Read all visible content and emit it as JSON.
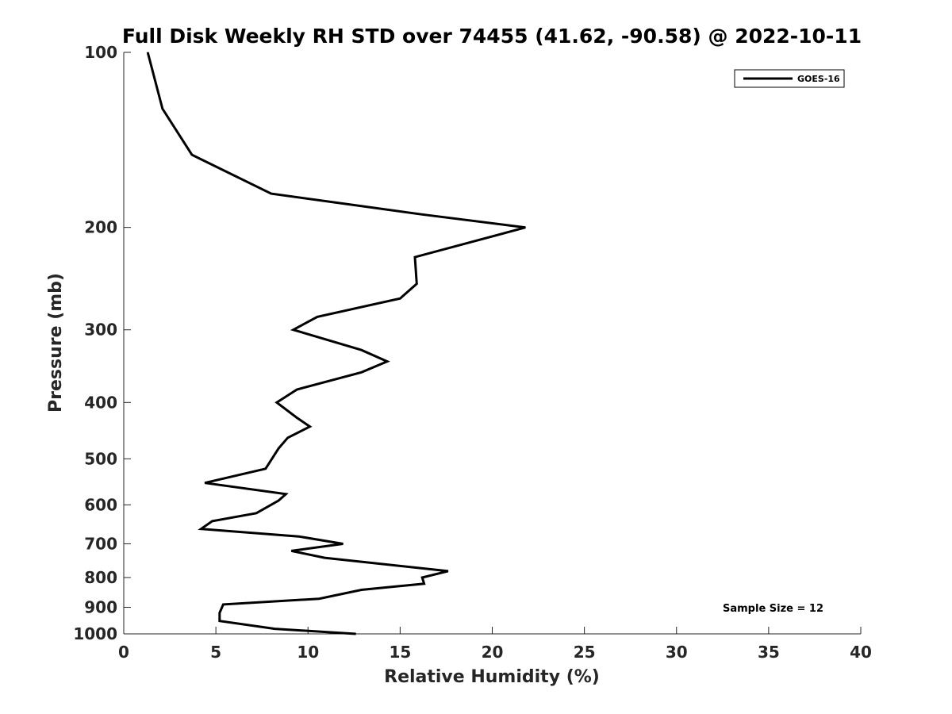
{
  "chart_data": {
    "type": "line",
    "title": "Full Disk Weekly RH STD over 74455 (41.62, -90.58) @ 2022-10-11",
    "xlabel": "Relative Humidity (%)",
    "ylabel": "Pressure (mb)",
    "xlim": [
      0,
      40
    ],
    "ylim": [
      100,
      1000
    ],
    "y_scale": "log",
    "y_reversed": true,
    "x_ticks": [
      0,
      5,
      10,
      15,
      20,
      25,
      30,
      35,
      40
    ],
    "y_ticks": [
      100,
      200,
      300,
      400,
      500,
      600,
      700,
      800,
      900,
      1000
    ],
    "legend": {
      "position": "top-right",
      "entries": [
        "GOES-16"
      ]
    },
    "annotation": "Sample Size = 12",
    "series": [
      {
        "name": "GOES-16",
        "color": "#000000",
        "points": [
          [
            1.3,
            100
          ],
          [
            2.1,
            125
          ],
          [
            3.7,
            150
          ],
          [
            8.0,
            175
          ],
          [
            16.2,
            190
          ],
          [
            21.8,
            200
          ],
          [
            15.8,
            225
          ],
          [
            15.9,
            250
          ],
          [
            15.0,
            265
          ],
          [
            10.5,
            285
          ],
          [
            9.2,
            300
          ],
          [
            12.9,
            325
          ],
          [
            14.3,
            340
          ],
          [
            12.9,
            355
          ],
          [
            9.4,
            380
          ],
          [
            8.3,
            400
          ],
          [
            9.4,
            425
          ],
          [
            10.1,
            440
          ],
          [
            8.9,
            460
          ],
          [
            8.4,
            480
          ],
          [
            7.7,
            520
          ],
          [
            4.4,
            550
          ],
          [
            8.8,
            575
          ],
          [
            8.4,
            590
          ],
          [
            7.2,
            620
          ],
          [
            4.8,
            640
          ],
          [
            4.2,
            660
          ],
          [
            9.5,
            680
          ],
          [
            11.9,
            700
          ],
          [
            9.1,
            720
          ],
          [
            10.9,
            740
          ],
          [
            17.6,
            780
          ],
          [
            16.2,
            800
          ],
          [
            16.3,
            820
          ],
          [
            12.9,
            840
          ],
          [
            10.6,
            870
          ],
          [
            5.4,
            890
          ],
          [
            5.2,
            920
          ],
          [
            5.2,
            950
          ],
          [
            8.2,
            980
          ],
          [
            12.6,
            1000
          ]
        ]
      }
    ]
  }
}
